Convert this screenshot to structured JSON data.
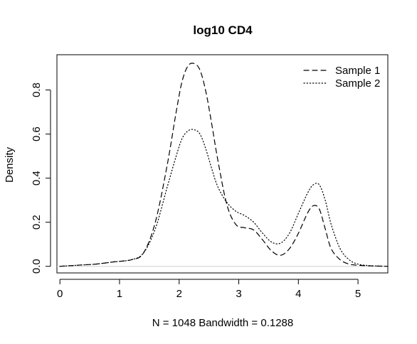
{
  "chart_data": {
    "type": "line",
    "title": "log10 CD4",
    "xlabel": "N = 1048   Bandwidth = 0.1288",
    "ylabel": "Density",
    "xlim": [
      -0.05,
      5.5
    ],
    "ylim": [
      -0.03,
      0.96
    ],
    "x_ticks": [
      0,
      1,
      2,
      3,
      4,
      5
    ],
    "x_tick_labels": [
      "0",
      "1",
      "2",
      "3",
      "4",
      "5"
    ],
    "y_ticks": [
      0.0,
      0.2,
      0.4,
      0.6,
      0.8
    ],
    "y_tick_labels": [
      "0.0",
      "0.2",
      "0.4",
      "0.6",
      "0.8"
    ],
    "legend_position": "top-right",
    "zero_line_color": "#d0d0d0",
    "series": [
      {
        "name": "Sample 1",
        "line_style": "dashed",
        "x": [
          0.0,
          0.3,
          0.6,
          0.9,
          1.2,
          1.4,
          1.6,
          1.8,
          1.95,
          2.05,
          2.15,
          2.25,
          2.35,
          2.45,
          2.55,
          2.65,
          2.8,
          2.95,
          3.1,
          3.25,
          3.4,
          3.55,
          3.7,
          3.85,
          4.0,
          4.15,
          4.25,
          4.35,
          4.45,
          4.55,
          4.7,
          4.85,
          5.0,
          5.2,
          5.5
        ],
        "y": [
          0.0,
          0.005,
          0.01,
          0.02,
          0.03,
          0.06,
          0.2,
          0.46,
          0.7,
          0.84,
          0.91,
          0.92,
          0.89,
          0.79,
          0.64,
          0.48,
          0.28,
          0.19,
          0.175,
          0.165,
          0.12,
          0.07,
          0.05,
          0.08,
          0.15,
          0.24,
          0.275,
          0.26,
          0.17,
          0.08,
          0.03,
          0.01,
          0.005,
          0.002,
          0.0
        ]
      },
      {
        "name": "Sample 2",
        "line_style": "dotted",
        "x": [
          0.0,
          0.3,
          0.6,
          0.9,
          1.2,
          1.4,
          1.6,
          1.8,
          1.95,
          2.05,
          2.15,
          2.25,
          2.35,
          2.45,
          2.55,
          2.65,
          2.8,
          2.95,
          3.1,
          3.25,
          3.4,
          3.55,
          3.7,
          3.85,
          4.0,
          4.15,
          4.25,
          4.35,
          4.45,
          4.55,
          4.7,
          4.85,
          5.0,
          5.2,
          5.5
        ],
        "y": [
          0.0,
          0.005,
          0.01,
          0.02,
          0.03,
          0.06,
          0.17,
          0.36,
          0.5,
          0.58,
          0.615,
          0.62,
          0.6,
          0.53,
          0.44,
          0.36,
          0.29,
          0.25,
          0.23,
          0.2,
          0.15,
          0.11,
          0.105,
          0.15,
          0.24,
          0.33,
          0.37,
          0.37,
          0.3,
          0.19,
          0.08,
          0.03,
          0.01,
          0.003,
          0.0
        ]
      }
    ]
  }
}
